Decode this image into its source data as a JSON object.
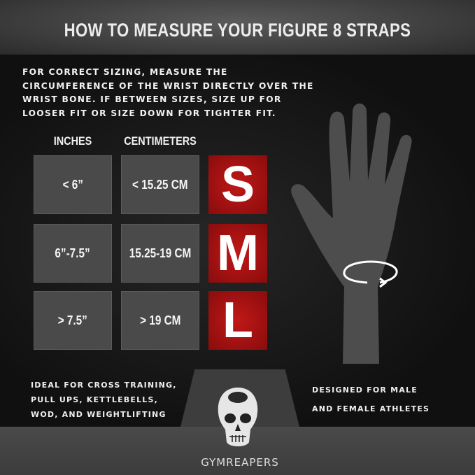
{
  "title": "HOW TO MEASURE YOUR FIGURE 8 STRAPS",
  "intro": "For correct sizing, measure the circumference of the wrist directly over the wrist bone. If between sizes, size up for looser fit or size down for tighter fit.",
  "table": {
    "headers": [
      "INCHES",
      "CENTIMETERS"
    ],
    "rows": [
      {
        "inches": "< 6”",
        "cm": "< 15.25 CM",
        "size": "S"
      },
      {
        "inches": "6”-7.5”",
        "cm": "15.25-19 CM",
        "size": "M"
      },
      {
        "inches": "> 7.5”",
        "cm": "> 19 CM",
        "size": "L"
      }
    ]
  },
  "footer_left": [
    "Ideal for cross training,",
    "pull ups, kettlebells,",
    "wod, and weightlifting"
  ],
  "footer_right": [
    "designed for male",
    "and female athletes"
  ],
  "brand": "GYMREAPERS",
  "colors": {
    "accent": "#b51414",
    "panel": "#141414"
  },
  "icons": [
    "hand-icon",
    "rotate-arrow-icon",
    "skull-logo-icon"
  ]
}
